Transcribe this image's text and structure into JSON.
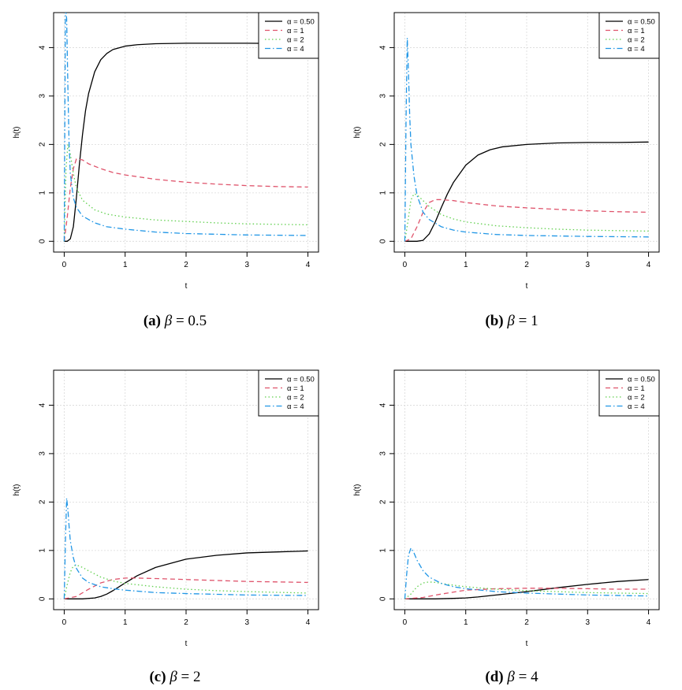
{
  "figure": {
    "captions": [
      {
        "label": "(a)",
        "symbol": "β",
        "eq": " = 0.5"
      },
      {
        "label": "(b)",
        "symbol": "β",
        "eq": " = 1"
      },
      {
        "label": "(c)",
        "symbol": "β",
        "eq": " = 2"
      },
      {
        "label": "(d)",
        "symbol": "β",
        "eq": " = 4"
      }
    ]
  },
  "chart_data": [
    {
      "type": "line",
      "panel": "a",
      "xlabel": "t",
      "ylabel": "h(t)",
      "xlim": [
        0,
        4
      ],
      "ylim": [
        0,
        4.5
      ],
      "xticks": [
        "0",
        "1",
        "2",
        "3",
        "4"
      ],
      "yticks": [
        "0",
        "1",
        "2",
        "3",
        "4"
      ],
      "grid": true,
      "legend_position": "top-right",
      "series": [
        {
          "name": "α = 0.50",
          "color": "#000000",
          "dash": "solid",
          "x": [
            0,
            0.05,
            0.1,
            0.15,
            0.2,
            0.25,
            0.3,
            0.35,
            0.4,
            0.5,
            0.6,
            0.7,
            0.8,
            1.0,
            1.2,
            1.5,
            2.0,
            2.5,
            3.0,
            4.0
          ],
          "y": [
            0,
            0,
            0.05,
            0.3,
            0.9,
            1.6,
            2.2,
            2.7,
            3.05,
            3.5,
            3.75,
            3.88,
            3.96,
            4.03,
            4.06,
            4.08,
            4.09,
            4.09,
            4.09,
            4.08
          ]
        },
        {
          "name": "α = 1",
          "color": "#DF536B",
          "dash": "dashed",
          "x": [
            0,
            0.05,
            0.1,
            0.15,
            0.2,
            0.3,
            0.4,
            0.6,
            0.8,
            1.0,
            1.5,
            2.0,
            2.5,
            3.0,
            3.5,
            4.0
          ],
          "y": [
            0,
            0.5,
            1.1,
            1.5,
            1.7,
            1.68,
            1.6,
            1.5,
            1.42,
            1.37,
            1.28,
            1.22,
            1.18,
            1.15,
            1.13,
            1.12
          ]
        },
        {
          "name": "α = 2",
          "color": "#61D04F",
          "dash": "dotted",
          "x": [
            0,
            0.03,
            0.06,
            0.1,
            0.15,
            0.2,
            0.3,
            0.5,
            0.7,
            1.0,
            1.5,
            2.0,
            2.5,
            3.0,
            4.0
          ],
          "y": [
            0,
            1.5,
            2.0,
            1.8,
            1.4,
            1.1,
            0.85,
            0.65,
            0.56,
            0.5,
            0.44,
            0.41,
            0.38,
            0.36,
            0.34
          ]
        },
        {
          "name": "α = 4",
          "color": "#2297E6",
          "dash": "dashdot",
          "x": [
            0,
            0.02,
            0.04,
            0.06,
            0.08,
            0.1,
            0.15,
            0.2,
            0.3,
            0.5,
            0.7,
            1.0,
            1.5,
            2.0,
            3.0,
            4.0
          ],
          "y": [
            0,
            4.8,
            4.6,
            3.2,
            2.0,
            1.4,
            0.9,
            0.7,
            0.52,
            0.38,
            0.3,
            0.25,
            0.19,
            0.16,
            0.13,
            0.12
          ]
        }
      ]
    },
    {
      "type": "line",
      "panel": "b",
      "xlabel": "t",
      "ylabel": "h(t)",
      "xlim": [
        0,
        4
      ],
      "ylim": [
        0,
        4.5
      ],
      "xticks": [
        "0",
        "1",
        "2",
        "3",
        "4"
      ],
      "yticks": [
        "0",
        "1",
        "2",
        "3",
        "4"
      ],
      "grid": true,
      "legend_position": "top-right",
      "series": [
        {
          "name": "α = 0.50",
          "color": "#000000",
          "dash": "solid",
          "x": [
            0,
            0.2,
            0.3,
            0.4,
            0.5,
            0.6,
            0.7,
            0.8,
            1.0,
            1.2,
            1.4,
            1.6,
            2.0,
            2.5,
            3.0,
            3.5,
            4.0
          ],
          "y": [
            0,
            0,
            0.02,
            0.15,
            0.4,
            0.7,
            0.98,
            1.22,
            1.57,
            1.78,
            1.89,
            1.95,
            2.0,
            2.03,
            2.04,
            2.04,
            2.05
          ]
        },
        {
          "name": "α = 1",
          "color": "#DF536B",
          "dash": "dashed",
          "x": [
            0,
            0.1,
            0.2,
            0.3,
            0.4,
            0.5,
            0.6,
            0.8,
            1.0,
            1.5,
            2.0,
            2.5,
            3.0,
            3.5,
            4.0
          ],
          "y": [
            0,
            0.05,
            0.3,
            0.6,
            0.8,
            0.86,
            0.86,
            0.84,
            0.8,
            0.73,
            0.69,
            0.66,
            0.63,
            0.61,
            0.6
          ]
        },
        {
          "name": "α = 2",
          "color": "#61D04F",
          "dash": "dotted",
          "x": [
            0,
            0.05,
            0.1,
            0.15,
            0.2,
            0.3,
            0.4,
            0.6,
            0.8,
            1.0,
            1.5,
            2.0,
            2.5,
            3.0,
            4.0
          ],
          "y": [
            0,
            0.4,
            0.85,
            0.98,
            0.96,
            0.84,
            0.72,
            0.55,
            0.46,
            0.4,
            0.32,
            0.28,
            0.25,
            0.23,
            0.21
          ]
        },
        {
          "name": "α = 4",
          "color": "#2297E6",
          "dash": "dashdot",
          "x": [
            0,
            0.02,
            0.04,
            0.06,
            0.08,
            0.1,
            0.15,
            0.2,
            0.3,
            0.4,
            0.6,
            0.8,
            1.0,
            1.5,
            2.0,
            3.0,
            4.0
          ],
          "y": [
            0,
            2.5,
            4.2,
            3.5,
            2.6,
            2.0,
            1.35,
            0.95,
            0.6,
            0.45,
            0.3,
            0.23,
            0.19,
            0.14,
            0.12,
            0.1,
            0.09
          ]
        }
      ]
    },
    {
      "type": "line",
      "panel": "c",
      "xlabel": "t",
      "ylabel": "h(t)",
      "xlim": [
        0,
        4
      ],
      "ylim": [
        0,
        4.5
      ],
      "xticks": [
        "0",
        "1",
        "2",
        "3",
        "4"
      ],
      "yticks": [
        "0",
        "1",
        "2",
        "3",
        "4"
      ],
      "grid": true,
      "legend_position": "top-right",
      "series": [
        {
          "name": "α = 0.50",
          "color": "#000000",
          "dash": "solid",
          "x": [
            0,
            0.3,
            0.5,
            0.6,
            0.7,
            0.8,
            1.0,
            1.2,
            1.5,
            2.0,
            2.5,
            3.0,
            3.5,
            4.0
          ],
          "y": [
            0,
            0,
            0.02,
            0.05,
            0.1,
            0.17,
            0.33,
            0.48,
            0.65,
            0.82,
            0.9,
            0.95,
            0.97,
            0.99
          ]
        },
        {
          "name": "α = 1",
          "color": "#DF536B",
          "dash": "dashed",
          "x": [
            0,
            0.2,
            0.4,
            0.6,
            0.8,
            1.0,
            1.2,
            1.5,
            2.0,
            2.5,
            3.0,
            3.5,
            4.0
          ],
          "y": [
            0,
            0.05,
            0.2,
            0.33,
            0.4,
            0.43,
            0.43,
            0.42,
            0.4,
            0.38,
            0.36,
            0.35,
            0.34
          ]
        },
        {
          "name": "α = 2",
          "color": "#61D04F",
          "dash": "dotted",
          "x": [
            0,
            0.05,
            0.1,
            0.15,
            0.2,
            0.3,
            0.4,
            0.6,
            0.8,
            1.0,
            1.5,
            2.0,
            2.5,
            3.0,
            4.0
          ],
          "y": [
            0,
            0.3,
            0.55,
            0.68,
            0.7,
            0.65,
            0.58,
            0.45,
            0.37,
            0.32,
            0.25,
            0.2,
            0.17,
            0.15,
            0.12
          ]
        },
        {
          "name": "α = 4",
          "color": "#2297E6",
          "dash": "dashdot",
          "x": [
            0,
            0.02,
            0.04,
            0.06,
            0.08,
            0.1,
            0.15,
            0.2,
            0.3,
            0.4,
            0.6,
            0.8,
            1.0,
            1.5,
            2.0,
            3.0,
            4.0
          ],
          "y": [
            0,
            1.2,
            2.08,
            1.85,
            1.5,
            1.2,
            0.85,
            0.63,
            0.43,
            0.34,
            0.25,
            0.21,
            0.18,
            0.13,
            0.11,
            0.08,
            0.07
          ]
        }
      ]
    },
    {
      "type": "line",
      "panel": "d",
      "xlabel": "t",
      "ylabel": "h(t)",
      "xlim": [
        0,
        4
      ],
      "ylim": [
        0,
        4.5
      ],
      "xticks": [
        "0",
        "1",
        "2",
        "3",
        "4"
      ],
      "yticks": [
        "0",
        "1",
        "2",
        "3",
        "4"
      ],
      "grid": true,
      "legend_position": "top-right",
      "series": [
        {
          "name": "α = 0.50",
          "color": "#000000",
          "dash": "solid",
          "x": [
            0,
            0.5,
            0.8,
            1.0,
            1.2,
            1.5,
            2.0,
            2.5,
            3.0,
            3.5,
            4.0
          ],
          "y": [
            0,
            0,
            0.01,
            0.02,
            0.04,
            0.08,
            0.15,
            0.23,
            0.3,
            0.36,
            0.4
          ]
        },
        {
          "name": "α = 1",
          "color": "#DF536B",
          "dash": "dashed",
          "x": [
            0,
            0.3,
            0.6,
            1.0,
            1.5,
            2.0,
            2.5,
            3.0,
            3.5,
            4.0
          ],
          "y": [
            0,
            0.03,
            0.1,
            0.18,
            0.21,
            0.22,
            0.22,
            0.21,
            0.2,
            0.2
          ]
        },
        {
          "name": "α = 2",
          "color": "#61D04F",
          "dash": "dotted",
          "x": [
            0,
            0.1,
            0.2,
            0.3,
            0.4,
            0.5,
            0.7,
            1.0,
            1.5,
            2.0,
            2.5,
            3.0,
            4.0
          ],
          "y": [
            0,
            0.1,
            0.25,
            0.33,
            0.35,
            0.34,
            0.3,
            0.25,
            0.2,
            0.17,
            0.15,
            0.13,
            0.11
          ]
        },
        {
          "name": "α = 4",
          "color": "#2297E6",
          "dash": "dashdot",
          "x": [
            0,
            0.03,
            0.06,
            0.1,
            0.15,
            0.2,
            0.3,
            0.4,
            0.6,
            0.8,
            1.0,
            1.5,
            2.0,
            3.0,
            4.0
          ],
          "y": [
            0,
            0.5,
            0.9,
            1.05,
            0.95,
            0.8,
            0.58,
            0.45,
            0.32,
            0.25,
            0.21,
            0.15,
            0.12,
            0.08,
            0.06
          ]
        }
      ]
    }
  ]
}
